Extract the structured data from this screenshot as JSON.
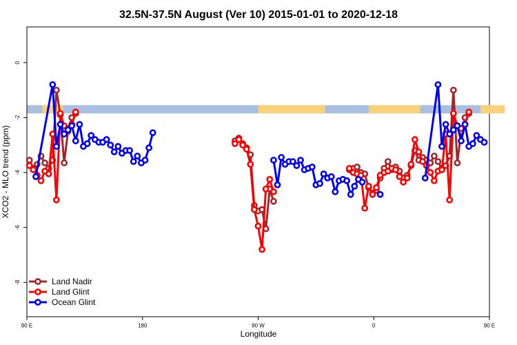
{
  "chart_data": {
    "type": "line",
    "title": "32.5N-37.5N August (Ver 10)   2015-01-01 to 2020-12-18",
    "xlabel": "Longitude",
    "ylabel": "XCO2 - MLO trend (ppm)",
    "xlim": [
      90,
      450
    ],
    "ylim": [
      -9.25,
      1.3
    ],
    "x_ticks": [
      {
        "value": 90,
        "label": "90 E"
      },
      {
        "value": 180,
        "label": "180"
      },
      {
        "value": 270,
        "label": "90 W"
      },
      {
        "value": 360,
        "label": "0"
      },
      {
        "value": 450,
        "label": "90 E"
      },
      {
        "value": 540,
        "label": "180"
      }
    ],
    "y_ticks": [
      {
        "value": 0,
        "label": "0"
      },
      {
        "value": -2,
        "label": "-2"
      },
      {
        "value": -4,
        "label": "-4"
      },
      {
        "value": -6,
        "label": "-6"
      },
      {
        "value": -8,
        "label": "-8"
      }
    ],
    "legend_position": "bottom-left",
    "land_mask_band": {
      "y_top": -1.55,
      "y_bottom": -1.85,
      "ocean_color": "#a8bfe0",
      "land_color": "#f7d27a",
      "land_ranges": [
        [
          102,
          118
        ],
        [
          270,
          322
        ],
        [
          356,
          396
        ],
        [
          443,
          462
        ]
      ]
    },
    "series": [
      {
        "name": "Land Nadir",
        "color": "#a0282a",
        "points": [
          [
            92,
            -3.55
          ],
          [
            95,
            -3.85
          ],
          [
            98,
            -3.7
          ],
          [
            101,
            -3.4
          ],
          [
            104,
            -3.65
          ],
          [
            107,
            -3.85
          ],
          [
            110,
            -3.55
          ],
          [
            113,
            -1.0
          ],
          [
            116,
            -1.9
          ],
          [
            119,
            -3.65
          ],
          [
            122,
            -2.5
          ],
          [
            125,
            -2.0
          ],
          [
            128,
            -1.85
          ],
          null,
          [
            252,
            -2.85
          ],
          [
            255,
            -2.75
          ],
          [
            258,
            -2.95
          ],
          [
            261,
            -3.1
          ],
          [
            264,
            -3.35
          ],
          [
            267,
            -5.2
          ],
          [
            270,
            -5.4
          ],
          [
            273,
            -5.35
          ],
          [
            276,
            -6.05
          ],
          [
            279,
            -4.6
          ],
          [
            282,
            -5.05
          ],
          null,
          [
            341,
            -3.9
          ],
          [
            344,
            -3.85
          ],
          [
            347,
            -3.8
          ],
          [
            350,
            -4.0
          ],
          [
            353,
            -4.05
          ],
          [
            356,
            -4.55
          ],
          [
            359,
            -4.75
          ],
          [
            362,
            -4.65
          ],
          [
            365,
            -4.2
          ],
          [
            368,
            -3.85
          ],
          [
            371,
            -3.6
          ],
          [
            374,
            -3.9
          ],
          [
            377,
            -3.8
          ],
          [
            380,
            -3.95
          ],
          [
            383,
            -4.2
          ],
          [
            386,
            -4.1
          ],
          [
            389,
            -3.75
          ],
          [
            392,
            -3.2
          ],
          [
            395,
            -3.55
          ],
          [
            398,
            -3.45
          ],
          [
            401,
            -3.55
          ],
          [
            404,
            -3.65
          ],
          [
            407,
            -3.4
          ],
          [
            410,
            -3.6
          ],
          [
            413,
            -3.85
          ],
          [
            416,
            -3.75
          ],
          [
            419,
            -3.4
          ],
          [
            422,
            -1.0
          ],
          [
            425,
            -3.65
          ],
          [
            428,
            -2.5
          ],
          [
            431,
            -2.0
          ],
          [
            434,
            -1.85
          ]
        ]
      },
      {
        "name": "Land Glint",
        "color": "#ff0000",
        "points": [
          [
            92,
            -3.75
          ],
          [
            95,
            -3.9
          ],
          [
            98,
            -4.1
          ],
          [
            101,
            -4.3
          ],
          [
            104,
            -3.95
          ],
          [
            107,
            -4.05
          ],
          [
            110,
            -2.6
          ],
          [
            113,
            -5.0
          ],
          [
            116,
            -1.85
          ],
          [
            119,
            -2.3
          ],
          [
            122,
            -2.4
          ],
          [
            125,
            -2.25
          ],
          [
            128,
            -1.8
          ],
          null,
          [
            252,
            -2.95
          ],
          [
            255,
            -2.8
          ],
          [
            258,
            -3.0
          ],
          [
            261,
            -3.15
          ],
          [
            264,
            -3.7
          ],
          [
            267,
            -5.35
          ],
          [
            270,
            -5.95
          ],
          [
            273,
            -6.8
          ],
          [
            276,
            -4.6
          ],
          [
            279,
            -4.25
          ],
          [
            282,
            -4.7
          ],
          null,
          [
            341,
            -3.85
          ],
          [
            344,
            -4.0
          ],
          [
            347,
            -4.05
          ],
          [
            350,
            -4.1
          ],
          [
            353,
            -5.3
          ],
          [
            356,
            -4.5
          ],
          [
            359,
            -4.8
          ],
          [
            362,
            -4.55
          ],
          [
            365,
            -4.1
          ],
          [
            368,
            -4.0
          ],
          [
            371,
            -3.95
          ],
          [
            374,
            -3.85
          ],
          [
            377,
            -3.9
          ],
          [
            380,
            -4.15
          ],
          [
            383,
            -4.35
          ],
          [
            386,
            -4.2
          ],
          [
            389,
            -3.7
          ],
          [
            392,
            -2.8
          ],
          [
            395,
            -3.25
          ],
          [
            398,
            -3.6
          ],
          [
            401,
            -3.75
          ],
          [
            404,
            -4.0
          ],
          [
            407,
            -4.3
          ],
          [
            410,
            -3.95
          ],
          [
            413,
            -3.9
          ],
          [
            416,
            -2.6
          ],
          [
            419,
            -5.0
          ],
          [
            422,
            -1.85
          ],
          [
            425,
            -2.3
          ],
          [
            428,
            -2.4
          ],
          [
            431,
            -2.25
          ],
          [
            434,
            -1.8
          ]
        ]
      },
      {
        "name": "Ocean Glint",
        "color": "#0000ee",
        "points": [
          [
            97,
            -4.15
          ],
          [
            110,
            -0.8
          ],
          [
            113,
            -3.05
          ],
          [
            116,
            -2.25
          ],
          [
            119,
            -2.6
          ],
          [
            122,
            -2.45
          ],
          [
            125,
            -2.3
          ],
          [
            128,
            -2.85
          ],
          [
            131,
            -2.25
          ],
          [
            134,
            -3.05
          ],
          [
            137,
            -2.95
          ],
          [
            140,
            -2.65
          ],
          [
            143,
            -2.8
          ],
          [
            146,
            -2.9
          ],
          [
            149,
            -2.9
          ],
          [
            152,
            -2.8
          ],
          [
            155,
            -3.0
          ],
          [
            158,
            -3.25
          ],
          [
            161,
            -3.05
          ],
          [
            164,
            -3.3
          ],
          [
            167,
            -3.2
          ],
          [
            170,
            -3.2
          ],
          [
            173,
            -3.6
          ],
          [
            176,
            -3.4
          ],
          [
            179,
            -3.65
          ],
          [
            182,
            -3.55
          ],
          [
            185,
            -3.1
          ],
          [
            188,
            -2.55
          ],
          null,
          [
            282,
            -3.55
          ],
          [
            285,
            -4.45
          ],
          [
            288,
            -3.45
          ],
          [
            291,
            -3.7
          ],
          [
            294,
            -3.6
          ],
          [
            297,
            -3.6
          ],
          [
            300,
            -3.75
          ],
          [
            303,
            -3.55
          ],
          [
            306,
            -3.9
          ],
          [
            309,
            -3.85
          ],
          [
            312,
            -3.8
          ],
          [
            315,
            -4.45
          ],
          [
            318,
            -4.4
          ],
          [
            321,
            -4.05
          ],
          [
            324,
            -4.2
          ],
          [
            327,
            -4.15
          ],
          [
            330,
            -4.7
          ],
          [
            333,
            -4.3
          ],
          [
            336,
            -4.25
          ],
          [
            339,
            -4.3
          ],
          [
            342,
            -4.8
          ],
          [
            345,
            -4.5
          ],
          [
            348,
            -4.25
          ],
          [
            351,
            -4.35
          ],
          null,
          [
            365,
            -4.8
          ],
          null,
          [
            400,
            -4.2
          ],
          [
            410,
            -0.8
          ],
          [
            413,
            -3.05
          ],
          [
            416,
            -2.25
          ],
          [
            419,
            -2.6
          ],
          [
            422,
            -2.45
          ],
          [
            425,
            -2.3
          ],
          [
            428,
            -2.85
          ],
          [
            431,
            -2.25
          ],
          [
            434,
            -3.05
          ],
          [
            437,
            -2.95
          ],
          [
            440,
            -2.65
          ],
          [
            443,
            -2.8
          ],
          [
            446,
            -2.9
          ]
        ]
      }
    ]
  }
}
